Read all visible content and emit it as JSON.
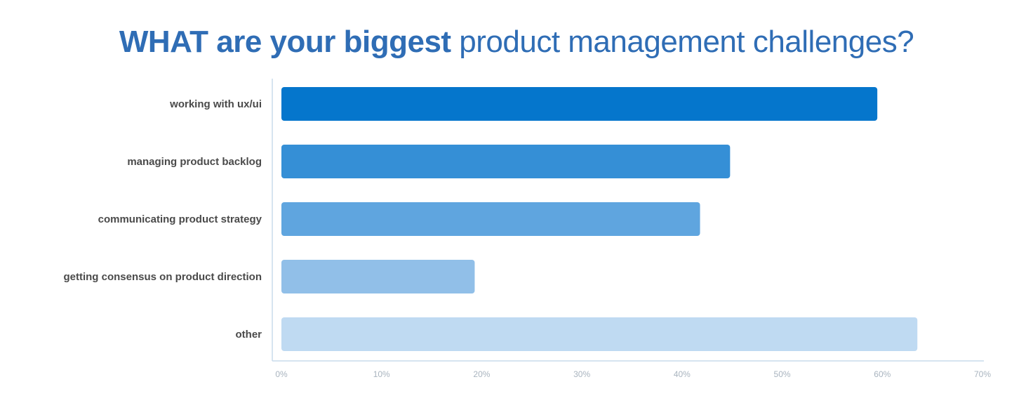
{
  "title": {
    "part1": "WHAT",
    "part2": "are your biggest",
    "part3": "product management challenges?"
  },
  "chart_data": {
    "type": "bar",
    "orientation": "horizontal",
    "categories": [
      "working with ux/ui",
      "managing product backlog",
      "communicating product strategy",
      "getting consensus on product direction",
      "other"
    ],
    "values": [
      59.5,
      44.8,
      41.8,
      19.3,
      63.5
    ],
    "value_unit": "%",
    "xlim": [
      0,
      70
    ],
    "xticks": [
      "0%",
      "10%",
      "20%",
      "30%",
      "40%",
      "50%",
      "60%",
      "70%"
    ],
    "xlabel": "",
    "ylabel": "",
    "grid": false,
    "legend": "none",
    "bar_colors": [
      "#0576cc",
      "#358fd6",
      "#5fa5df",
      "#91bfe8",
      "#bfdaf2"
    ]
  }
}
